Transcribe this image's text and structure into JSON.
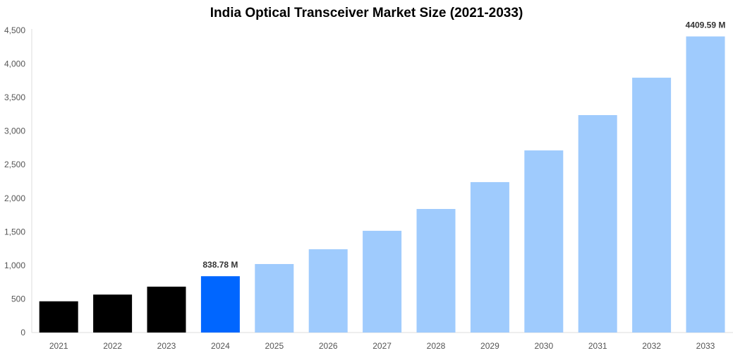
{
  "chart_data": {
    "type": "bar",
    "title": "India Optical Transceiver Market Size (2021-2033)",
    "xlabel": "",
    "ylabel": "",
    "categories": [
      "2021",
      "2022",
      "2023",
      "2024",
      "2025",
      "2026",
      "2027",
      "2028",
      "2029",
      "2030",
      "2031",
      "2032",
      "2033"
    ],
    "values": [
      465,
      565,
      683,
      838.78,
      1020,
      1240,
      1515,
      1840,
      2240,
      2712,
      3238,
      3795,
      4409.59
    ],
    "bar_colors": [
      "#000000",
      "#000000",
      "#000000",
      "#0066ff",
      "#9fcbfd",
      "#9fcbfd",
      "#9fcbfd",
      "#9fcbfd",
      "#9fcbfd",
      "#9fcbfd",
      "#9fcbfd",
      "#9fcbfd",
      "#9fcbfd"
    ],
    "data_labels": {
      "3": "838.78 M",
      "12": "4409.59 M"
    },
    "ylim": [
      0,
      4500
    ],
    "yticks": [
      "0",
      "500",
      "1,000",
      "1,500",
      "2,000",
      "2,500",
      "3,000",
      "3,500",
      "4,000",
      "4,500"
    ],
    "grid": false
  }
}
